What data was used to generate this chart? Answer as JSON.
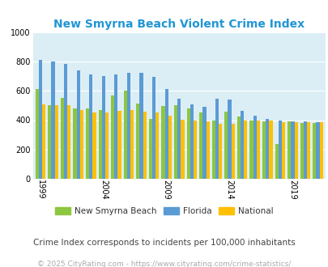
{
  "title": "New Smyrna Beach Violent Crime Index",
  "subtitle": "Crime Index corresponds to incidents per 100,000 inhabitants",
  "footer": "© 2025 CityRating.com - https://www.cityrating.com/crime-statistics/",
  "ylim": [
    0,
    1000
  ],
  "yticks": [
    0,
    200,
    400,
    600,
    800,
    1000
  ],
  "plot_bg_color": "#dceef5",
  "fig_bg_color": "#ffffff",
  "bar_colors": {
    "city": "#8dc63f",
    "state": "#5b9bd5",
    "national": "#ffc000"
  },
  "years": [
    1999,
    2000,
    2001,
    2002,
    2003,
    2004,
    2005,
    2006,
    2007,
    2008,
    2009,
    2010,
    2011,
    2012,
    2013,
    2014,
    2015,
    2016,
    2017,
    2018,
    2019,
    2020,
    2021
  ],
  "city_values": [
    610,
    500,
    550,
    480,
    480,
    470,
    570,
    600,
    515,
    410,
    495,
    500,
    480,
    455,
    395,
    460,
    425,
    395,
    390,
    235,
    390,
    380,
    380
  ],
  "state_values": [
    810,
    800,
    785,
    740,
    710,
    700,
    710,
    720,
    725,
    695,
    610,
    545,
    510,
    490,
    545,
    540,
    465,
    430,
    410,
    400,
    390,
    390,
    385
  ],
  "national_values": [
    510,
    500,
    500,
    470,
    455,
    455,
    465,
    470,
    460,
    455,
    430,
    405,
    395,
    390,
    375,
    375,
    395,
    400,
    395,
    385,
    385,
    385,
    385
  ],
  "xtick_labels": [
    "1999",
    "2004",
    "2009",
    "2014",
    "2019"
  ],
  "xtick_positions": [
    0,
    5,
    10,
    15,
    20
  ],
  "legend_labels": [
    "New Smyrna Beach",
    "Florida",
    "National"
  ],
  "title_color": "#2196d4",
  "subtitle_color": "#444444",
  "footer_color": "#aaaaaa",
  "title_fontsize": 10,
  "subtitle_fontsize": 7.5,
  "footer_fontsize": 6.5,
  "legend_fontsize": 7.5,
  "tick_fontsize": 7,
  "bar_width": 0.27
}
